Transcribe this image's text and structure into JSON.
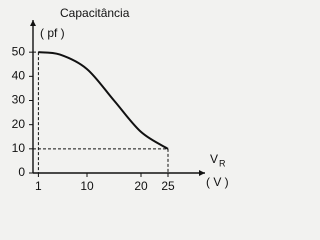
{
  "chart_data": {
    "type": "line",
    "y_label": "Capacitância",
    "y_unit": "( pf )",
    "x_label": "V",
    "x_label_sub": "R",
    "x_unit": "( V )",
    "x": [
      1,
      5,
      10,
      15,
      20,
      25
    ],
    "series": [
      {
        "name": null,
        "color": "#111111",
        "values": [
          50,
          49,
          43,
          30,
          17,
          10
        ]
      }
    ],
    "xlim": [
      0,
      30
    ],
    "ylim": [
      0,
      60
    ],
    "xticks": [
      1,
      10,
      20,
      25
    ],
    "yticks": [
      0,
      10,
      20,
      30,
      40,
      50
    ]
  }
}
